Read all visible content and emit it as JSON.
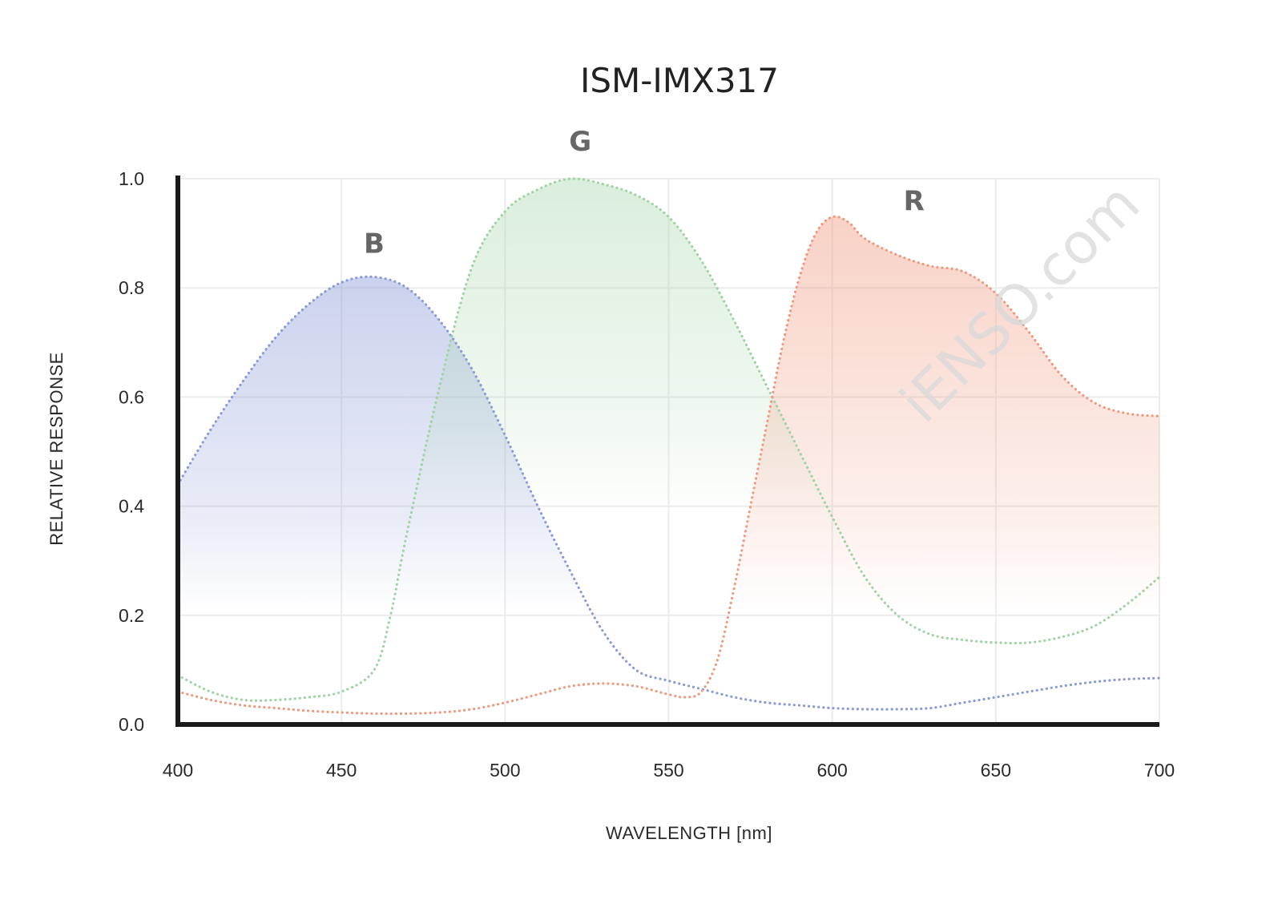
{
  "chart_data": {
    "type": "area",
    "title": "ISM-IMX317",
    "xlabel": "WAVELENGTH [nm]",
    "ylabel": "RELATIVE RESPONSE",
    "xlim": [
      400,
      700
    ],
    "ylim": [
      0,
      1
    ],
    "x_ticks": [
      "400",
      "450",
      "500",
      "550",
      "600",
      "650",
      "700"
    ],
    "y_ticks": [
      "0.0",
      "0.2",
      "0.4",
      "0.6",
      "0.8",
      "1.0"
    ],
    "grid": true,
    "watermark": "iENSO.com",
    "series": [
      {
        "name": "B",
        "color": "#8a9bd6",
        "x": [
          400,
          410,
          420,
          430,
          440,
          450,
          460,
          470,
          480,
          490,
          500,
          510,
          520,
          530,
          540,
          550,
          560,
          570,
          580,
          590,
          600,
          610,
          620,
          630,
          640,
          650,
          660,
          670,
          680,
          690,
          700
        ],
        "y": [
          0.44,
          0.54,
          0.63,
          0.71,
          0.77,
          0.81,
          0.82,
          0.8,
          0.74,
          0.65,
          0.53,
          0.4,
          0.28,
          0.17,
          0.1,
          0.08,
          0.065,
          0.05,
          0.04,
          0.035,
          0.03,
          0.028,
          0.028,
          0.03,
          0.04,
          0.05,
          0.06,
          0.07,
          0.078,
          0.083,
          0.085
        ]
      },
      {
        "name": "G",
        "color": "#9fd3a4",
        "x": [
          400,
          410,
          420,
          430,
          440,
          450,
          460,
          465,
          470,
          480,
          490,
          500,
          510,
          520,
          530,
          540,
          550,
          560,
          570,
          580,
          590,
          600,
          610,
          620,
          630,
          640,
          650,
          660,
          670,
          680,
          690,
          700
        ],
        "y": [
          0.09,
          0.06,
          0.045,
          0.045,
          0.05,
          0.06,
          0.1,
          0.2,
          0.35,
          0.62,
          0.84,
          0.94,
          0.98,
          1.0,
          0.99,
          0.97,
          0.93,
          0.85,
          0.74,
          0.62,
          0.5,
          0.38,
          0.27,
          0.2,
          0.165,
          0.155,
          0.15,
          0.15,
          0.16,
          0.18,
          0.22,
          0.27
        ]
      },
      {
        "name": "R",
        "color": "#ef9a80",
        "x": [
          400,
          410,
          420,
          430,
          440,
          450,
          460,
          470,
          480,
          490,
          500,
          510,
          520,
          530,
          540,
          550,
          555,
          560,
          565,
          570,
          575,
          580,
          585,
          590,
          595,
          600,
          605,
          610,
          620,
          630,
          640,
          650,
          660,
          670,
          680,
          690,
          700
        ],
        "y": [
          0.06,
          0.045,
          0.035,
          0.03,
          0.025,
          0.022,
          0.02,
          0.02,
          0.022,
          0.028,
          0.04,
          0.055,
          0.07,
          0.075,
          0.07,
          0.055,
          0.05,
          0.06,
          0.12,
          0.25,
          0.4,
          0.55,
          0.7,
          0.82,
          0.9,
          0.93,
          0.92,
          0.89,
          0.86,
          0.84,
          0.83,
          0.79,
          0.72,
          0.64,
          0.59,
          0.57,
          0.565
        ]
      }
    ]
  }
}
